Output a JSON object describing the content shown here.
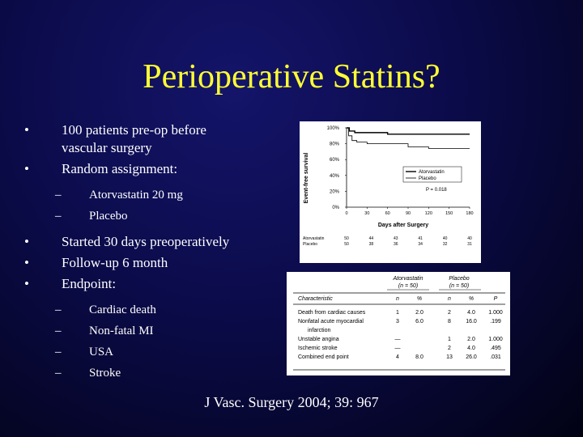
{
  "slide": {
    "title": "Perioperative Statins?",
    "bullets": [
      {
        "marker": "•",
        "text": "100 patients pre-op before"
      },
      {
        "text": "vascular surgery"
      },
      {
        "marker": "•",
        "text": "Random assignment:"
      }
    ],
    "sub_bullets_1": [
      {
        "marker": "–",
        "text": "Atorvastatin 20 mg"
      },
      {
        "marker": "–",
        "text": "Placebo"
      }
    ],
    "bullets_2": [
      {
        "marker": "•",
        "text": "Started 30 days preoperatively"
      },
      {
        "marker": "•",
        "text": "Follow-up 6 month"
      },
      {
        "marker": "•",
        "text": "Endpoint:"
      }
    ],
    "sub_bullets_2": [
      {
        "marker": "–",
        "text": "Cardiac death"
      },
      {
        "marker": "–",
        "text": "Non-fatal MI"
      },
      {
        "marker": "–",
        "text": "USA"
      },
      {
        "marker": "–",
        "text": "Stroke"
      }
    ],
    "citation": "J Vasc. Surgery 2004; 39: 967"
  },
  "chart_data": {
    "type": "line",
    "title": "",
    "xlabel": "Days after Surgery",
    "ylabel": "Event-free survival",
    "xlim": [
      0,
      180
    ],
    "ylim": [
      0,
      100
    ],
    "x_ticks": [
      "0",
      "30",
      "60",
      "90",
      "120",
      "150",
      "180"
    ],
    "y_ticks": [
      "0%",
      "20%",
      "40%",
      "60%",
      "80%",
      "100%"
    ],
    "p_value_label": "P = 0.018",
    "legend_position": "right",
    "series": [
      {
        "name": "Atorvastatin",
        "x": [
          0,
          4,
          12,
          30,
          60,
          100,
          180
        ],
        "y": [
          100,
          96,
          94,
          94,
          92,
          92,
          92
        ]
      },
      {
        "name": "Placebo",
        "x": [
          0,
          3,
          8,
          15,
          30,
          60,
          90,
          120,
          160,
          180
        ],
        "y": [
          100,
          90,
          84,
          82,
          80,
          80,
          76,
          74,
          74,
          74
        ]
      }
    ],
    "at_risk": {
      "rows": [
        {
          "label": "Atorvastatin",
          "values": [
            "50",
            "44",
            "43",
            "41",
            "40",
            "40"
          ]
        },
        {
          "label": "Placebo",
          "values": [
            "50",
            "38",
            "36",
            "34",
            "32",
            "31"
          ]
        }
      ]
    }
  },
  "outcomes_table": {
    "group_headers": [
      "Atorvastatin",
      "(n = 50)",
      "Placebo",
      "(n = 50)"
    ],
    "col_headers": [
      "Characteristic",
      "n",
      "%",
      "n",
      "%",
      "P"
    ],
    "rows": [
      {
        "label": "Death from cardiac causes",
        "cells": [
          "1",
          "2.0",
          "2",
          "4.0",
          "1.000"
        ]
      },
      {
        "label": "Nonfatal acute myocardial",
        "cells": [
          "3",
          "6.0",
          "8",
          "16.0",
          ".199"
        ]
      },
      {
        "label": "infarction",
        "cells": [
          "",
          "",
          "",
          "",
          ""
        ]
      },
      {
        "label": "Unstable angina",
        "cells": [
          "—",
          "",
          "1",
          "2.0",
          "1.000"
        ]
      },
      {
        "label": "Ischemic stroke",
        "cells": [
          "—",
          "",
          "2",
          "4.0",
          ".495"
        ]
      },
      {
        "label": "Combined end point",
        "cells": [
          "4",
          "8.0",
          "13",
          "26.0",
          ".031"
        ]
      }
    ]
  }
}
